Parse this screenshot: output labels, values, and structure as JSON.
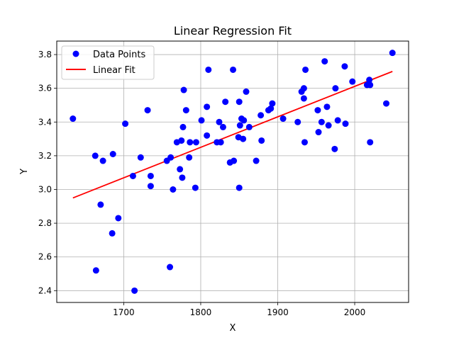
{
  "chart_data": {
    "type": "scatter",
    "title": "Linear Regression Fit",
    "xlabel": "X",
    "ylabel": "Y",
    "xlim": [
      1613,
      2070
    ],
    "ylim": [
      2.33,
      3.88
    ],
    "xticks": [
      1700,
      1800,
      1900,
      2000
    ],
    "yticks": [
      2.4,
      2.6,
      2.8,
      3.0,
      3.2,
      3.4,
      3.6,
      3.8
    ],
    "xtick_labels": [
      "1700",
      "1800",
      "1900",
      "2000"
    ],
    "ytick_labels": [
      "2.4",
      "2.6",
      "2.8",
      "3.0",
      "3.2",
      "3.4",
      "3.6",
      "3.8"
    ],
    "grid": true,
    "legend_position": "upper-left",
    "series": [
      {
        "name": "Data Points",
        "kind": "scatter",
        "color": "#0000ff",
        "x": [
          1634,
          1663,
          1664,
          1670,
          1673,
          1685,
          1686,
          1693,
          1702,
          1712,
          1714,
          1722,
          1731,
          1735,
          1735,
          1756,
          1760,
          1761,
          1764,
          1769,
          1773,
          1775,
          1776,
          1777,
          1778,
          1781,
          1785,
          1786,
          1793,
          1794,
          1801,
          1808,
          1808,
          1810,
          1821,
          1824,
          1826,
          1829,
          1832,
          1838,
          1842,
          1843,
          1849,
          1850,
          1850,
          1851,
          1853,
          1855,
          1856,
          1859,
          1863,
          1872,
          1878,
          1879,
          1888,
          1891,
          1893,
          1907,
          1926,
          1931,
          1934,
          1934,
          1935,
          1936,
          1952,
          1953,
          1957,
          1961,
          1964,
          1966,
          1974,
          1975,
          1978,
          1987,
          1988,
          1997,
          2016,
          2019,
          2020,
          2020,
          2041,
          2049
        ],
        "y": [
          3.42,
          3.2,
          2.52,
          2.91,
          3.17,
          2.74,
          3.21,
          2.83,
          3.39,
          3.08,
          2.4,
          3.19,
          3.47,
          3.08,
          3.02,
          3.17,
          2.54,
          3.19,
          3.0,
          3.28,
          3.12,
          3.29,
          3.07,
          3.37,
          3.59,
          3.47,
          3.19,
          3.28,
          3.01,
          3.28,
          3.41,
          3.49,
          3.32,
          3.71,
          3.28,
          3.4,
          3.28,
          3.37,
          3.52,
          3.16,
          3.71,
          3.17,
          3.31,
          3.52,
          3.01,
          3.38,
          3.42,
          3.3,
          3.41,
          3.58,
          3.37,
          3.17,
          3.44,
          3.29,
          3.47,
          3.48,
          3.51,
          3.42,
          3.4,
          3.58,
          3.6,
          3.54,
          3.28,
          3.71,
          3.47,
          3.34,
          3.4,
          3.76,
          3.49,
          3.38,
          3.24,
          3.6,
          3.41,
          3.73,
          3.39,
          3.64,
          3.62,
          3.65,
          3.62,
          3.28,
          3.51,
          3.81
        ]
      },
      {
        "name": "Linear Fit",
        "kind": "line",
        "color": "#ff0000",
        "x": [
          1634,
          2049
        ],
        "y": [
          2.95,
          3.7
        ]
      }
    ]
  }
}
